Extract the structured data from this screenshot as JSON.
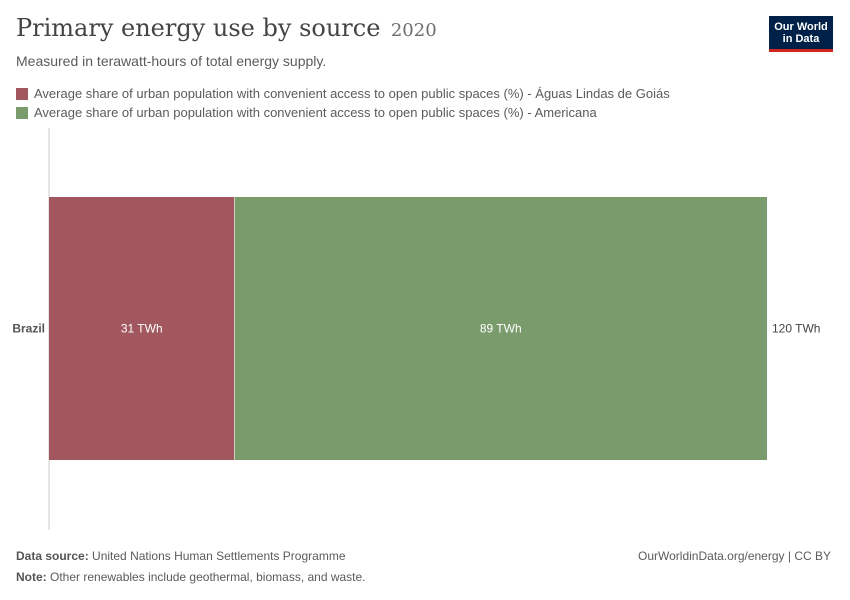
{
  "header": {
    "title": "Primary energy use by source",
    "year": "2020",
    "subtitle": "Measured in terawatt-hours of total energy supply.",
    "logo_line1": "Our World",
    "logo_line2": "in Data"
  },
  "footer": {
    "source_label": "Data source:",
    "source_text": "United Nations Human Settlements Programme",
    "note_label": "Note:",
    "note_text": "Other renewables include geothermal, biomass, and waste.",
    "credit": "OurWorldinData.org/energy | CC BY"
  },
  "chart_data": {
    "type": "bar",
    "orientation": "horizontal",
    "stacked": true,
    "categories": [
      "Brazil"
    ],
    "series": [
      {
        "name": "Average share of urban population with convenient access to open public spaces (%) - Águas Lindas de Goiás",
        "values": [
          31
        ],
        "labels": [
          "31 TWh"
        ],
        "color": "#a2575e"
      },
      {
        "name": "Average share of urban population with convenient access to open public spaces (%) - Americana",
        "values": [
          89
        ],
        "labels": [
          "89 TWh"
        ],
        "color": "#7a9b6c"
      }
    ],
    "totals": [
      "120 TWh"
    ],
    "xlim": [
      0,
      120
    ],
    "legend": "top-left",
    "grid": false
  }
}
